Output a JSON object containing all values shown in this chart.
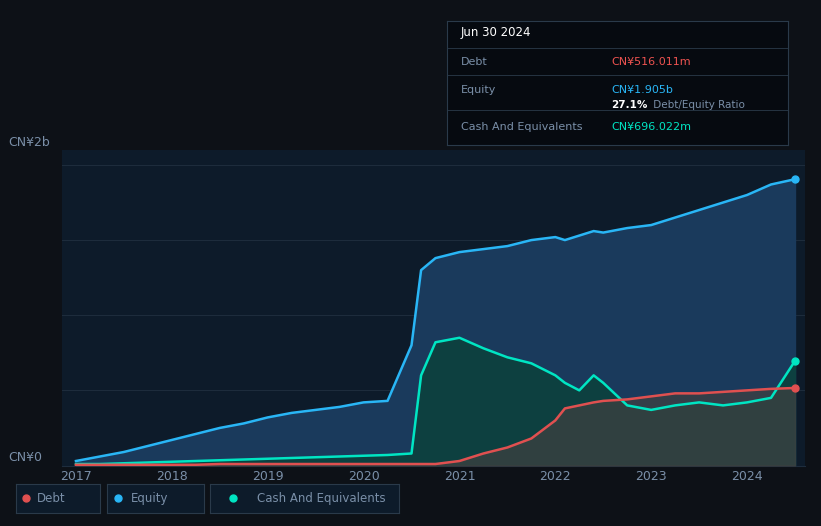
{
  "background_color": "#0d1117",
  "chart_bg": "#0d1b2a",
  "ylabel_top": "CN¥2b",
  "ylabel_bottom": "CN¥0",
  "x_ticks": [
    2017,
    2018,
    2019,
    2020,
    2021,
    2022,
    2023,
    2024
  ],
  "years": [
    2017.0,
    2017.25,
    2017.5,
    2017.75,
    2018.0,
    2018.25,
    2018.5,
    2018.75,
    2019.0,
    2019.25,
    2019.5,
    2019.75,
    2020.0,
    2020.25,
    2020.5,
    2020.6,
    2020.75,
    2021.0,
    2021.25,
    2021.5,
    2021.75,
    2022.0,
    2022.1,
    2022.25,
    2022.4,
    2022.5,
    2022.75,
    2023.0,
    2023.25,
    2023.5,
    2023.75,
    2024.0,
    2024.25,
    2024.5
  ],
  "equity": [
    0.03,
    0.06,
    0.09,
    0.13,
    0.17,
    0.21,
    0.25,
    0.28,
    0.32,
    0.35,
    0.37,
    0.39,
    0.42,
    0.43,
    0.8,
    1.3,
    1.38,
    1.42,
    1.44,
    1.46,
    1.5,
    1.52,
    1.5,
    1.53,
    1.56,
    1.55,
    1.58,
    1.6,
    1.65,
    1.7,
    1.75,
    1.8,
    1.87,
    1.905
  ],
  "cash": [
    0.01,
    0.01,
    0.015,
    0.02,
    0.025,
    0.03,
    0.035,
    0.04,
    0.045,
    0.05,
    0.055,
    0.06,
    0.065,
    0.07,
    0.08,
    0.6,
    0.82,
    0.85,
    0.78,
    0.72,
    0.68,
    0.6,
    0.55,
    0.5,
    0.6,
    0.55,
    0.4,
    0.37,
    0.4,
    0.42,
    0.4,
    0.42,
    0.45,
    0.696
  ],
  "debt": [
    0.005,
    0.005,
    0.005,
    0.005,
    0.005,
    0.005,
    0.01,
    0.01,
    0.01,
    0.01,
    0.01,
    0.01,
    0.01,
    0.01,
    0.01,
    0.01,
    0.01,
    0.03,
    0.08,
    0.12,
    0.18,
    0.3,
    0.38,
    0.4,
    0.42,
    0.43,
    0.44,
    0.46,
    0.48,
    0.48,
    0.49,
    0.5,
    0.51,
    0.516
  ],
  "equity_color": "#29b6f6",
  "equity_fill": "#1a3a5c",
  "cash_color": "#00e5c3",
  "cash_fill": "#0d4040",
  "debt_color": "#e05050",
  "debt_fill": "#404040",
  "grid_color": "#1e2d3d",
  "tick_color": "#7a8fa8",
  "tooltip_bg": "#060a10",
  "tooltip_border": "#2a3a4a",
  "tooltip_title_color": "#ffffff",
  "tooltip_label_color": "#7a8fa8",
  "tooltip_debt_color": "#ef5350",
  "tooltip_equity_color": "#29b6f6",
  "tooltip_cash_color": "#00e5c3",
  "legend_bg": "#0d1b2a",
  "legend_border": "#2a3a4a",
  "ylim": [
    0,
    2.1
  ]
}
